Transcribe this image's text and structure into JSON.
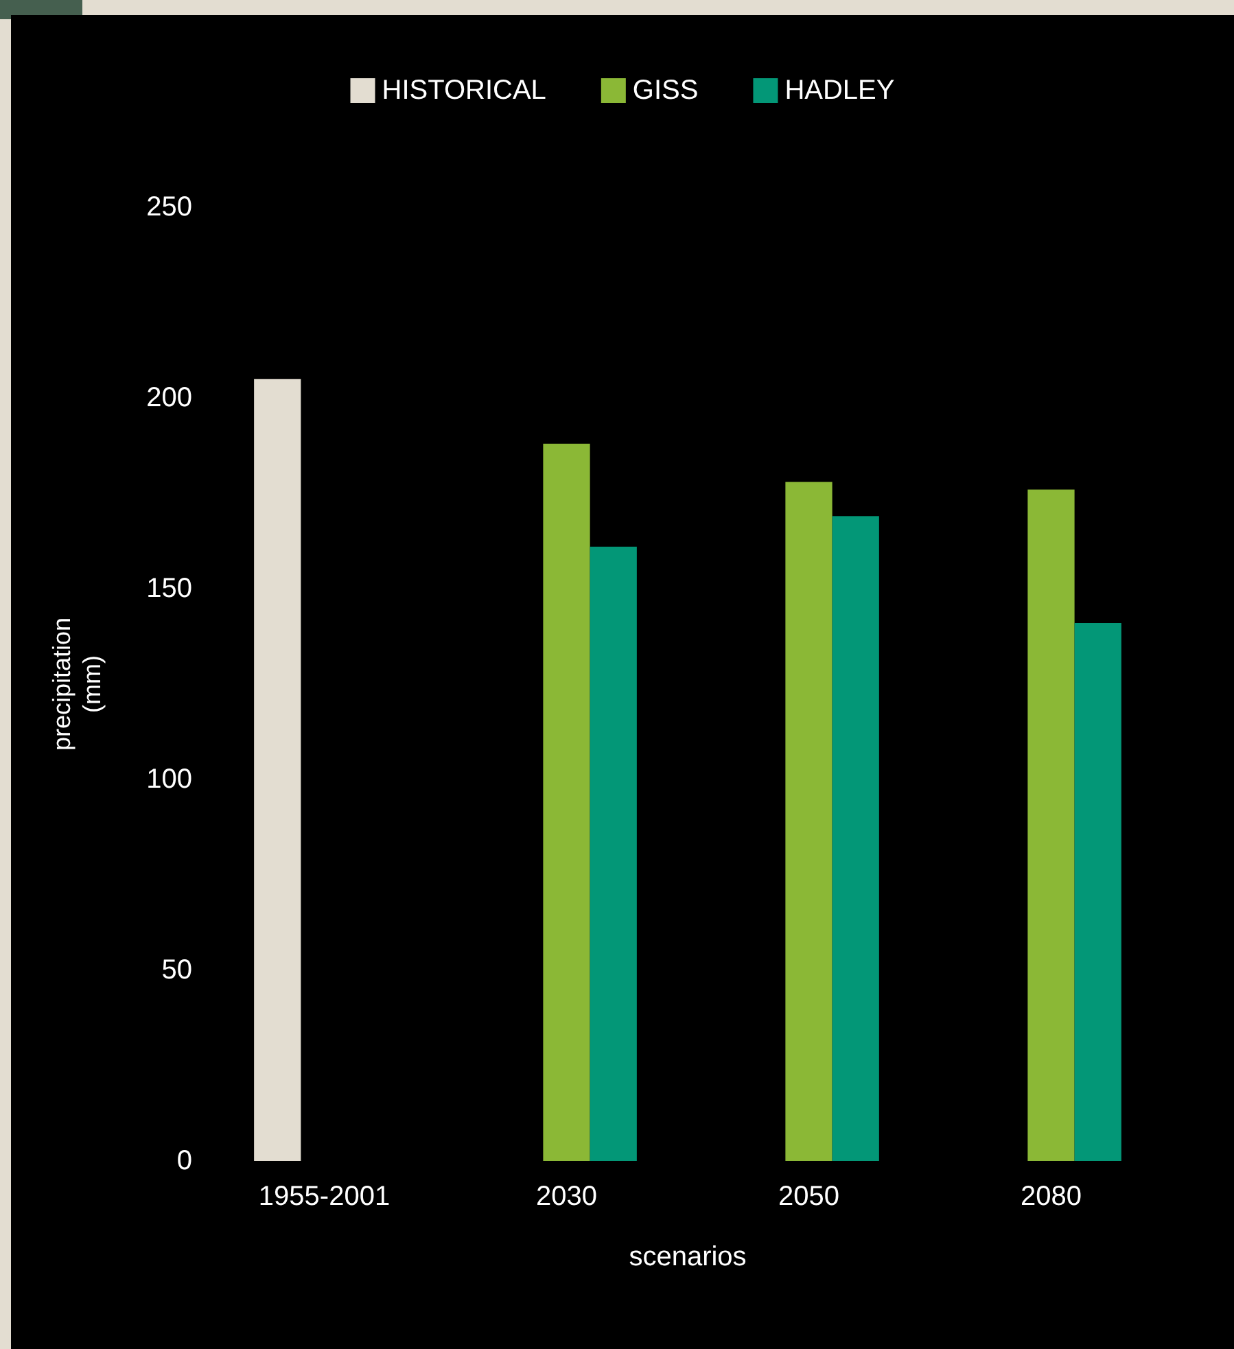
{
  "chart_data": {
    "type": "bar",
    "xlabel": "scenarios",
    "ylabel": "precipitation (mm)",
    "categories": [
      "1955-2001",
      "2030",
      "2050",
      "2080"
    ],
    "series": [
      {
        "name": "HISTORICAL",
        "color": "#e3ddd1",
        "values": [
          205,
          null,
          null,
          null
        ]
      },
      {
        "name": "GISS",
        "color": "#8bb836",
        "values": [
          null,
          188,
          178,
          176
        ]
      },
      {
        "name": "HADLEY",
        "color": "#039777",
        "values": [
          null,
          161,
          169,
          141
        ]
      }
    ],
    "ylim": [
      0,
      250
    ],
    "yticks": [
      0,
      50,
      100,
      150,
      200,
      250
    ],
    "grid": false,
    "legend": "top"
  }
}
